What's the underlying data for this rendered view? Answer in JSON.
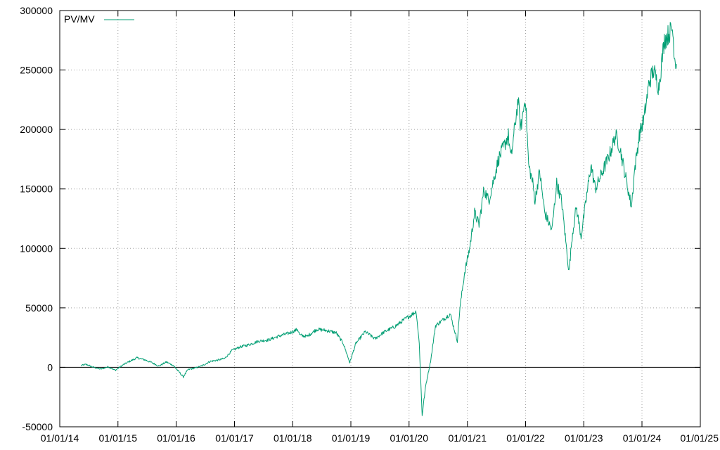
{
  "chart_data": {
    "type": "line",
    "title": "",
    "xlabel": "",
    "ylabel": "",
    "grid": true,
    "legend_position": "top-left",
    "ylim": [
      -50000,
      300000
    ],
    "xlim": [
      "2014-01-01",
      "2025-01-01"
    ],
    "y_ticks": [
      -50000,
      0,
      50000,
      100000,
      150000,
      200000,
      250000,
      300000
    ],
    "y_tick_labels": [
      "-50000",
      "0",
      "50000",
      "100000",
      "150000",
      "200000",
      "250000",
      "300000"
    ],
    "x_ticks": [
      "2014-01-01",
      "2015-01-01",
      "2016-01-01",
      "2017-01-01",
      "2018-01-01",
      "2019-01-01",
      "2020-01-01",
      "2021-01-01",
      "2022-01-01",
      "2023-01-01",
      "2024-01-01",
      "2025-01-01"
    ],
    "x_tick_labels": [
      "01/01/14",
      "01/01/15",
      "01/01/16",
      "01/01/17",
      "01/01/18",
      "01/01/19",
      "01/01/20",
      "01/01/21",
      "01/01/22",
      "01/01/23",
      "01/01/24",
      "01/01/25"
    ],
    "zero_line": true,
    "series": [
      {
        "name": "PV/MV",
        "color": "#009e73",
        "points": [
          [
            "2014-05-15",
            1500
          ],
          [
            "2014-06-15",
            2500
          ],
          [
            "2014-08-01",
            0
          ],
          [
            "2014-09-15",
            -1500
          ],
          [
            "2014-11-01",
            500
          ],
          [
            "2014-12-15",
            -2500
          ],
          [
            "2015-02-01",
            2000
          ],
          [
            "2015-03-15",
            5000
          ],
          [
            "2015-05-01",
            8000
          ],
          [
            "2015-06-15",
            6500
          ],
          [
            "2015-08-01",
            4000
          ],
          [
            "2015-09-15",
            1000
          ],
          [
            "2015-11-01",
            4500
          ],
          [
            "2015-12-15",
            1500
          ],
          [
            "2016-01-20",
            -4000
          ],
          [
            "2016-02-15",
            -8000
          ],
          [
            "2016-03-15",
            -2000
          ],
          [
            "2016-05-01",
            -500
          ],
          [
            "2016-06-15",
            1500
          ],
          [
            "2016-08-01",
            5000
          ],
          [
            "2016-09-15",
            6000
          ],
          [
            "2016-11-01",
            7500
          ],
          [
            "2016-12-15",
            14000
          ],
          [
            "2017-02-01",
            17000
          ],
          [
            "2017-04-01",
            19000
          ],
          [
            "2017-06-01",
            22000
          ],
          [
            "2017-08-01",
            23000
          ],
          [
            "2017-10-01",
            26000
          ],
          [
            "2017-12-15",
            29000
          ],
          [
            "2018-02-01",
            32000
          ],
          [
            "2018-02-15",
            27000
          ],
          [
            "2018-04-01",
            26000
          ],
          [
            "2018-06-01",
            32000
          ],
          [
            "2018-08-01",
            31000
          ],
          [
            "2018-10-01",
            29000
          ],
          [
            "2018-11-15",
            20000
          ],
          [
            "2018-12-25",
            4000
          ],
          [
            "2019-02-01",
            20000
          ],
          [
            "2019-04-01",
            30000
          ],
          [
            "2019-06-01",
            24000
          ],
          [
            "2019-08-01",
            30000
          ],
          [
            "2019-10-01",
            34000
          ],
          [
            "2019-12-01",
            40000
          ],
          [
            "2020-02-15",
            47000
          ],
          [
            "2020-03-05",
            20000
          ],
          [
            "2020-03-23",
            -40000
          ],
          [
            "2020-04-15",
            -15000
          ],
          [
            "2020-05-15",
            5000
          ],
          [
            "2020-06-15",
            35000
          ],
          [
            "2020-08-01",
            40000
          ],
          [
            "2020-09-15",
            45000
          ],
          [
            "2020-10-30",
            22000
          ],
          [
            "2020-11-15",
            50000
          ],
          [
            "2020-12-15",
            80000
          ],
          [
            "2021-01-15",
            100000
          ],
          [
            "2021-02-15",
            130000
          ],
          [
            "2021-03-15",
            120000
          ],
          [
            "2021-04-15",
            150000
          ],
          [
            "2021-05-15",
            140000
          ],
          [
            "2021-06-15",
            158000
          ],
          [
            "2021-07-15",
            175000
          ],
          [
            "2021-08-15",
            185000
          ],
          [
            "2021-09-15",
            195000
          ],
          [
            "2021-10-01",
            175000
          ],
          [
            "2021-11-15",
            225000
          ],
          [
            "2021-12-01",
            200000
          ],
          [
            "2021-12-31",
            228000
          ],
          [
            "2022-01-20",
            170000
          ],
          [
            "2022-02-15",
            155000
          ],
          [
            "2022-03-01",
            140000
          ],
          [
            "2022-03-30",
            165000
          ],
          [
            "2022-05-01",
            130000
          ],
          [
            "2022-06-15",
            115000
          ],
          [
            "2022-07-15",
            155000
          ],
          [
            "2022-08-15",
            140000
          ],
          [
            "2022-09-30",
            80000
          ],
          [
            "2022-10-20",
            110000
          ],
          [
            "2022-11-15",
            135000
          ],
          [
            "2022-12-15",
            110000
          ],
          [
            "2023-01-20",
            145000
          ],
          [
            "2023-02-15",
            170000
          ],
          [
            "2023-03-15",
            150000
          ],
          [
            "2023-04-15",
            160000
          ],
          [
            "2023-06-15",
            180000
          ],
          [
            "2023-07-20",
            195000
          ],
          [
            "2023-08-15",
            185000
          ],
          [
            "2023-10-27",
            135000
          ],
          [
            "2023-11-15",
            165000
          ],
          [
            "2023-12-15",
            195000
          ],
          [
            "2024-01-15",
            210000
          ],
          [
            "2024-02-15",
            240000
          ],
          [
            "2024-03-15",
            250000
          ],
          [
            "2024-04-15",
            235000
          ],
          [
            "2024-05-20",
            275000
          ],
          [
            "2024-06-15",
            280000
          ],
          [
            "2024-07-10",
            285000
          ],
          [
            "2024-07-25",
            260000
          ],
          [
            "2024-08-05",
            255000
          ]
        ]
      }
    ]
  }
}
